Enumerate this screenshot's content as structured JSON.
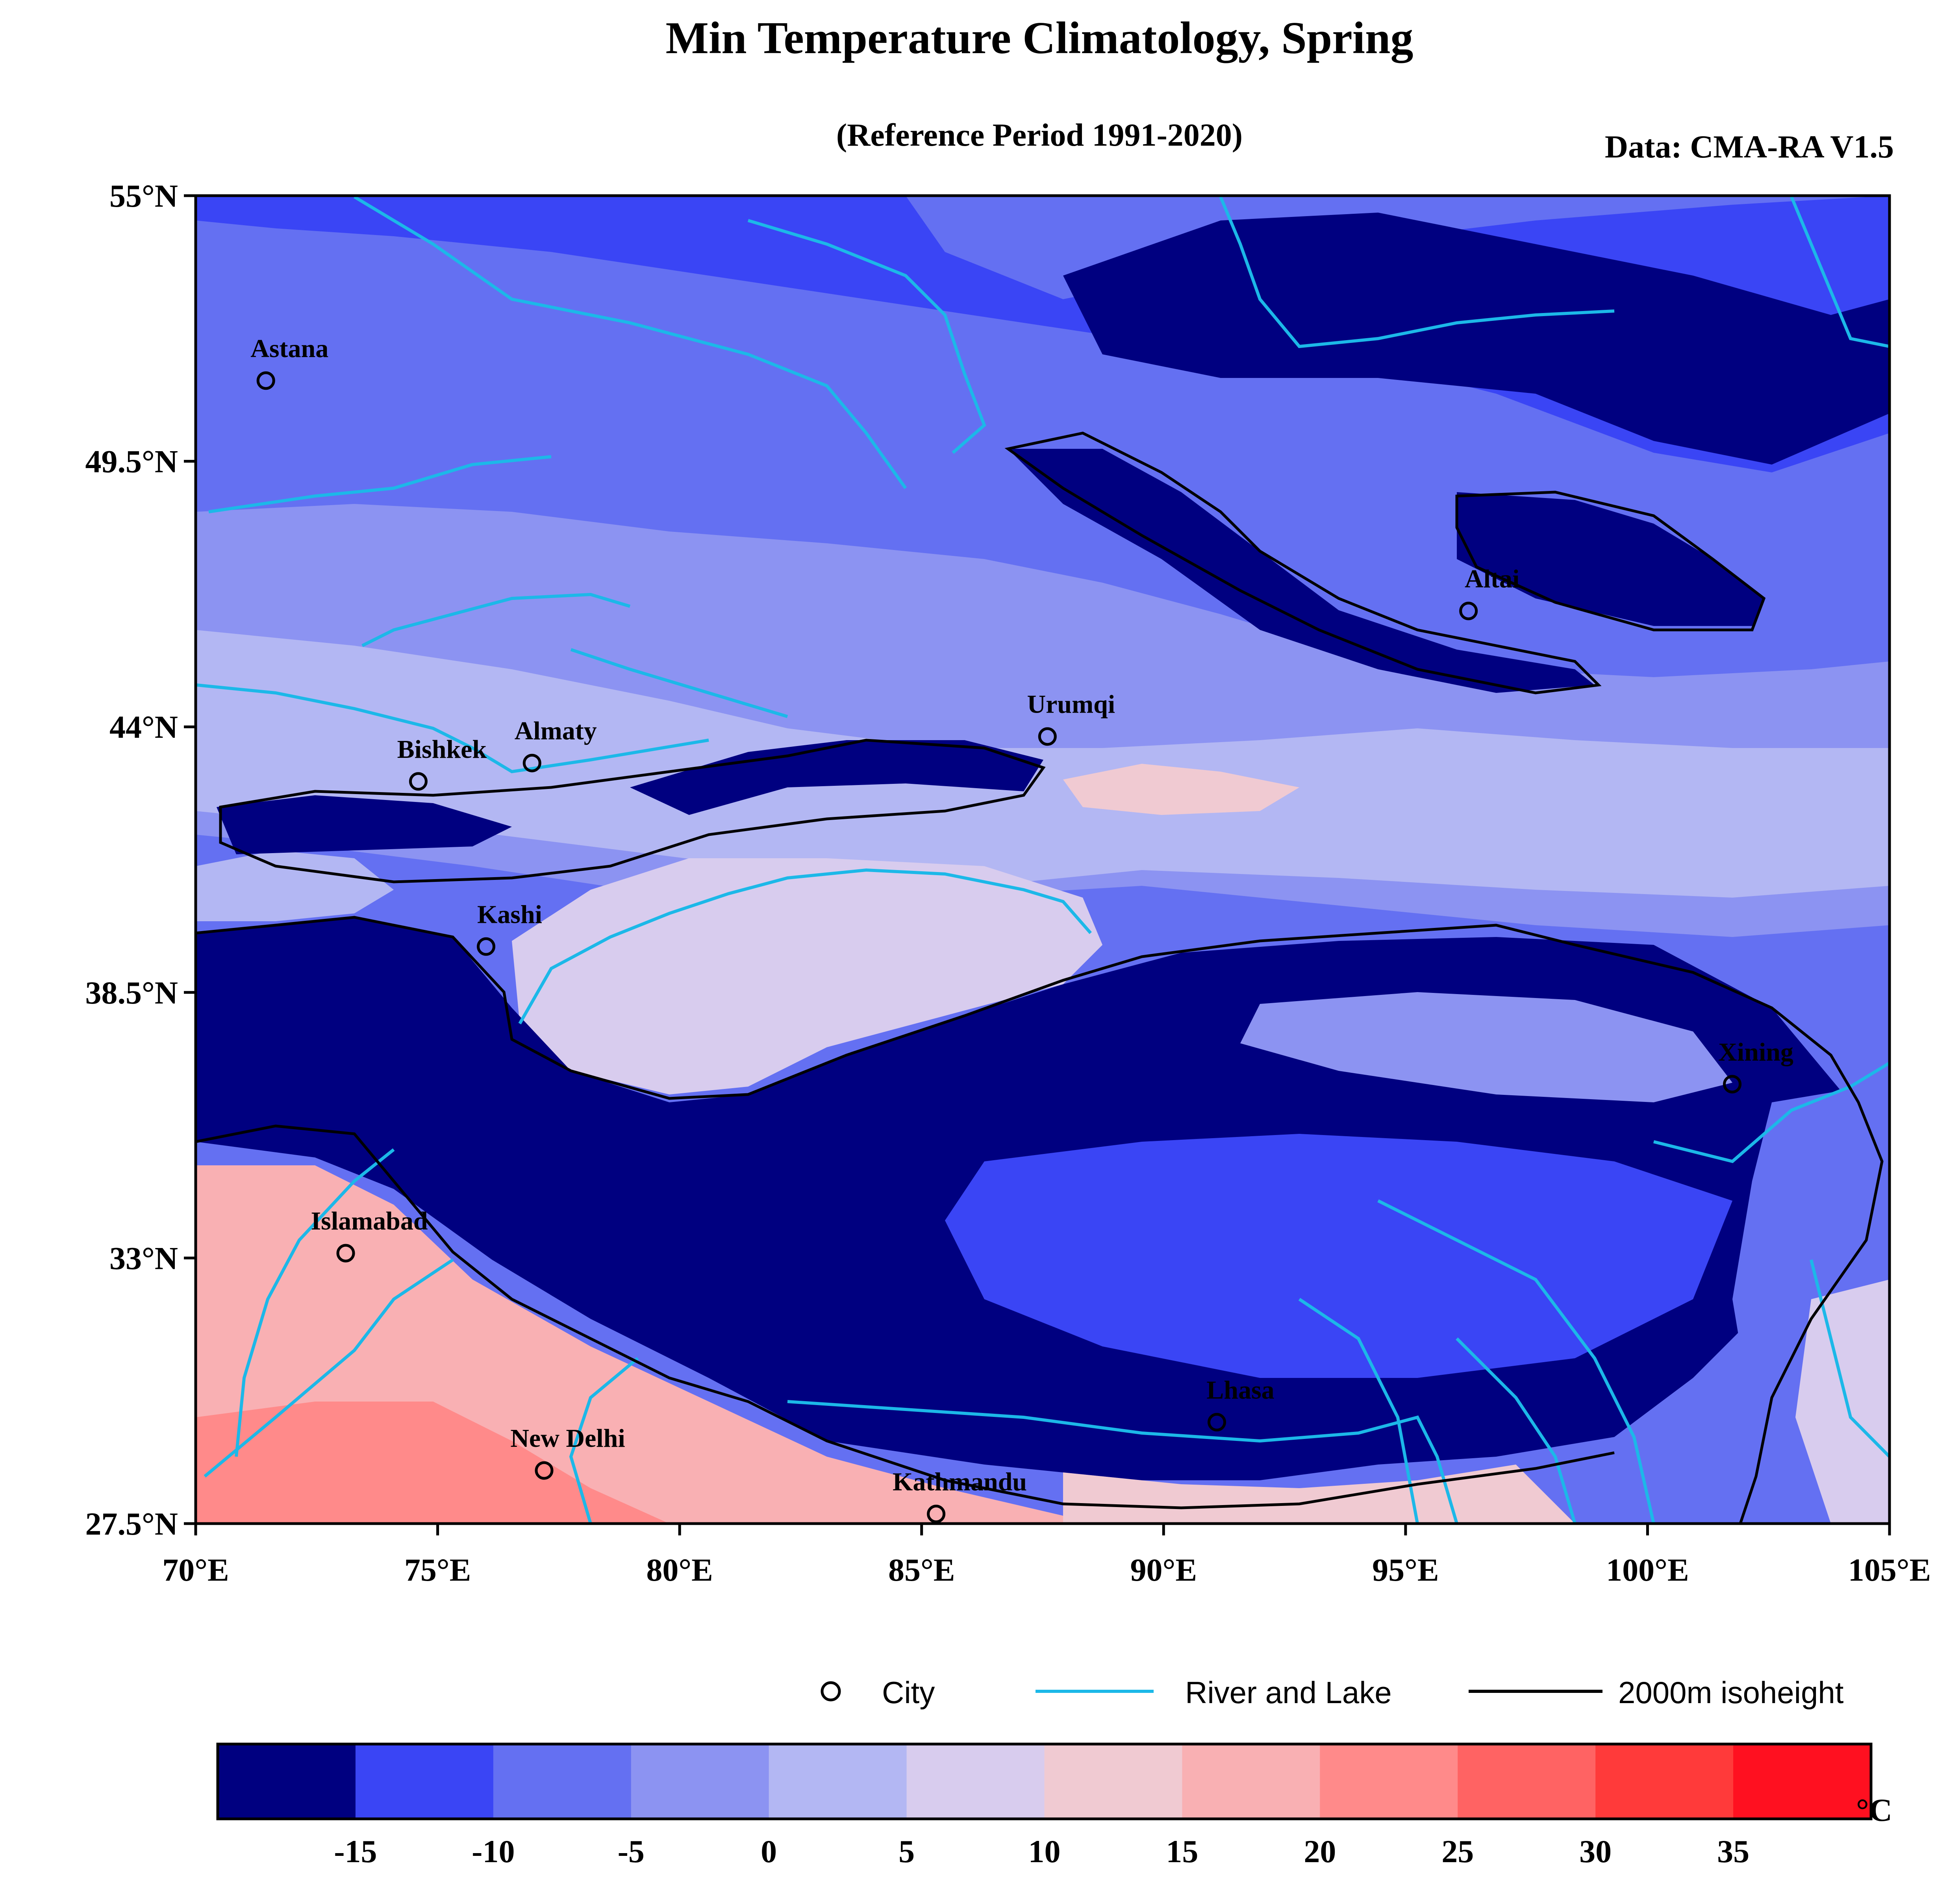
{
  "title": "Min Temperature Climatology, Spring",
  "subtitle": "(Reference Period 1991-2020)",
  "source": "Data: CMA-RA V1.5",
  "map": {
    "lon_range": [
      70,
      105
    ],
    "lat_range": [
      27.5,
      55
    ],
    "x_ticks": [
      "70°E",
      "75°E",
      "80°E",
      "85°E",
      "90°E",
      "95°E",
      "100°E",
      "105°E"
    ],
    "y_ticks": [
      "55°N",
      "49.5°N",
      "44°N",
      "38.5°N",
      "33°N",
      "27.5°N"
    ],
    "cities": [
      {
        "name": "Astana",
        "lon": 71.45,
        "lat": 51.17
      },
      {
        "name": "Bishkek",
        "lon": 74.6,
        "lat": 42.87
      },
      {
        "name": "Almaty",
        "lon": 76.95,
        "lat": 43.25
      },
      {
        "name": "Urumqi",
        "lon": 87.6,
        "lat": 43.8
      },
      {
        "name": "Altai",
        "lon": 96.3,
        "lat": 46.4
      },
      {
        "name": "Kashi",
        "lon": 76.0,
        "lat": 39.45
      },
      {
        "name": "Xining",
        "lon": 101.75,
        "lat": 36.6
      },
      {
        "name": "Islamabad",
        "lon": 73.1,
        "lat": 33.1
      },
      {
        "name": "Lhasa",
        "lon": 91.1,
        "lat": 29.6
      },
      {
        "name": "New Delhi",
        "lon": 77.2,
        "lat": 28.6
      },
      {
        "name": "Kathmandu",
        "lon": 85.3,
        "lat": 27.7
      }
    ]
  },
  "legend": {
    "city": "City",
    "river": "River and Lake",
    "isoheight": "2000m isoheight"
  },
  "colorbar": {
    "unit": "°C",
    "ticks": [
      "-15",
      "-10",
      "-5",
      "0",
      "5",
      "10",
      "15",
      "20",
      "25",
      "30",
      "35"
    ],
    "colors": [
      "#000080",
      "#3a45f5",
      "#6470f2",
      "#8c93f2",
      "#b3b7f3",
      "#d8ccee",
      "#f0cad2",
      "#f9b0b3",
      "#ff8a8a",
      "#ff6363",
      "#ff3a3a",
      "#ff1020"
    ]
  },
  "colors": {
    "river": "#1cb8e8",
    "isoheight": "#000000"
  }
}
